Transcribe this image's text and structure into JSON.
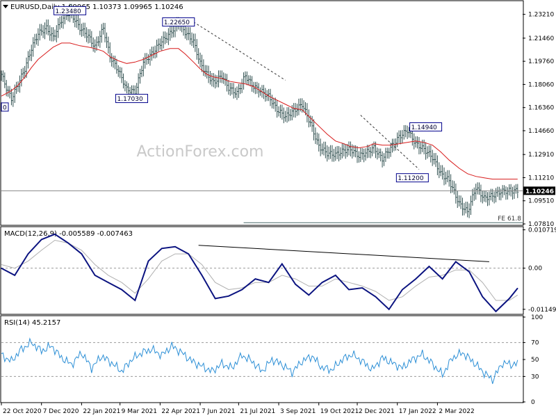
{
  "chart_data": {
    "type": "line",
    "symbol": "EURUSD",
    "timeframe": "Daily",
    "ohlc_header": "1.09965 1.10373 1.09965 1.10246",
    "watermark": "ActionForex.com",
    "price_panel": {
      "ylim": [
        1.0781,
        1.2406
      ],
      "y_ticks": [
        "1.23210",
        "1.21460",
        "1.19760",
        "1.18060",
        "1.16360",
        "1.14660",
        "1.12910",
        "1.11210",
        "1.09510",
        "1.07810"
      ],
      "y_tick_values": [
        1.2321,
        1.2146,
        1.1976,
        1.1806,
        1.1636,
        1.1466,
        1.1291,
        1.1121,
        1.0951,
        1.0781
      ],
      "current_price_label": "1.10246",
      "current_price": 1.10246,
      "x": [
        0,
        3,
        6,
        10,
        14,
        18,
        22,
        27,
        31,
        36,
        41,
        47,
        52,
        56,
        61,
        65,
        70,
        75,
        80,
        85,
        90,
        95,
        101,
        106,
        110,
        115,
        119,
        123,
        127,
        132,
        136,
        141,
        146,
        151,
        155,
        160,
        165,
        170,
        175,
        180,
        185,
        190,
        195,
        200,
        205,
        209,
        214,
        219,
        223,
        228,
        233,
        238,
        243,
        248,
        253,
        258,
        263,
        268,
        274,
        279,
        284,
        289,
        294,
        299,
        304,
        309
      ],
      "close": [
        1.188,
        1.178,
        1.17,
        1.181,
        1.192,
        1.207,
        1.218,
        1.222,
        1.215,
        1.228,
        1.234,
        1.222,
        1.216,
        1.208,
        1.222,
        1.201,
        1.191,
        1.177,
        1.175,
        1.197,
        1.203,
        1.211,
        1.218,
        1.226,
        1.219,
        1.212,
        1.196,
        1.188,
        1.182,
        1.187,
        1.178,
        1.174,
        1.187,
        1.179,
        1.176,
        1.172,
        1.162,
        1.157,
        1.161,
        1.166,
        1.152,
        1.135,
        1.13,
        1.129,
        1.132,
        1.133,
        1.128,
        1.131,
        1.134,
        1.126,
        1.134,
        1.142,
        1.147,
        1.137,
        1.133,
        1.127,
        1.115,
        1.11,
        1.093,
        1.087,
        1.105,
        1.097,
        1.099,
        1.102,
        1.1025,
        1.1025
      ],
      "ma": [
        1.172,
        1.174,
        1.176,
        1.18,
        1.186,
        1.193,
        1.199,
        1.204,
        1.208,
        1.211,
        1.211,
        1.209,
        1.208,
        1.207,
        1.205,
        1.201,
        1.198,
        1.196,
        1.197,
        1.199,
        1.202,
        1.205,
        1.207,
        1.207,
        1.203,
        1.197,
        1.192,
        1.188,
        1.186,
        1.185,
        1.183,
        1.182,
        1.181,
        1.179,
        1.176,
        1.172,
        1.169,
        1.166,
        1.163,
        1.162,
        1.156,
        1.15,
        1.144,
        1.139,
        1.137,
        1.135,
        1.134,
        1.135,
        1.137,
        1.136,
        1.136,
        1.137,
        1.138,
        1.139,
        1.138,
        1.136,
        1.131,
        1.125,
        1.119,
        1.115,
        1.113,
        1.112,
        1.111,
        1.111,
        1.111,
        1.111
      ],
      "annotations": [
        {
          "label": "1.23480",
          "x": 41,
          "y": 1.2348
        },
        {
          "label": "1.22650",
          "x": 106,
          "y": 1.2265
        },
        {
          "label": "1.17030",
          "x": 78,
          "y": 1.1703
        },
        {
          "label": "1.14940",
          "x": 254,
          "y": 1.1494
        },
        {
          "label": "1.11200",
          "x": 246,
          "y": 1.112
        },
        {
          "label": "0",
          "x": 1,
          "y": 1.164
        }
      ],
      "dashed_trendlines": [
        {
          "x": [
            115,
            170
          ],
          "y": [
            1.2265,
            1.1837
          ]
        },
        {
          "x": [
            215,
            250
          ],
          "y": [
            1.158,
            1.1182
          ]
        }
      ],
      "fib_line": {
        "label": "FE 61.8",
        "value": 1.079
      }
    },
    "macd_panel": {
      "title": "MACD(12,26,9) -0.005589 -0.007463",
      "ylim": [
        -0.0125,
        0.0112
      ],
      "y_ticks": [
        "0.010719",
        "0.00",
        "-0.011499"
      ],
      "y_tick_values": [
        0.010719,
        0.0,
        -0.011499
      ],
      "x": [
        0,
        8,
        16,
        24,
        32,
        40,
        48,
        56,
        64,
        72,
        80,
        88,
        96,
        104,
        112,
        120,
        128,
        136,
        144,
        152,
        160,
        168,
        176,
        184,
        192,
        200,
        208,
        216,
        224,
        232,
        240,
        248,
        256,
        264,
        272,
        280,
        288,
        296,
        304,
        309
      ],
      "macd": [
        0.0,
        -0.002,
        0.004,
        0.008,
        0.0095,
        0.007,
        0.004,
        -0.002,
        -0.004,
        -0.006,
        -0.009,
        0.002,
        0.0055,
        0.006,
        0.004,
        -0.002,
        -0.0085,
        -0.0078,
        -0.006,
        -0.003,
        -0.004,
        0.0012,
        -0.0045,
        -0.0075,
        -0.004,
        -0.002,
        -0.006,
        -0.0055,
        -0.008,
        -0.0115,
        -0.006,
        -0.003,
        0.0005,
        -0.003,
        0.0018,
        -0.001,
        -0.008,
        -0.0121,
        -0.0085,
        -0.0056
      ],
      "signal": [
        0.001,
        0.0,
        0.002,
        0.005,
        0.0078,
        0.007,
        0.005,
        0.001,
        -0.002,
        -0.004,
        -0.007,
        -0.003,
        0.002,
        0.004,
        0.004,
        0.001,
        -0.004,
        -0.006,
        -0.0055,
        -0.004,
        -0.004,
        -0.002,
        -0.003,
        -0.005,
        -0.005,
        -0.003,
        -0.004,
        -0.005,
        -0.0065,
        -0.009,
        -0.008,
        -0.005,
        -0.0025,
        -0.002,
        -0.0005,
        -0.0005,
        -0.004,
        -0.009,
        -0.009,
        -0.0075
      ],
      "trendline": {
        "x": [
          118,
          292
        ],
        "y": [
          0.0064,
          0.0018
        ]
      }
    },
    "rsi_panel": {
      "title": "RSI(14) 45.2157",
      "ylim": [
        0,
        100
      ],
      "y_ticks": [
        "100",
        "70",
        "50",
        "30",
        "0"
      ],
      "y_tick_values": [
        100,
        70,
        50,
        30,
        0
      ],
      "guide_levels": [
        70,
        30
      ],
      "x": [
        0,
        6,
        12,
        18,
        24,
        30,
        36,
        42,
        48,
        54,
        60,
        66,
        72,
        78,
        84,
        90,
        96,
        102,
        108,
        114,
        120,
        126,
        132,
        138,
        144,
        150,
        156,
        162,
        168,
        174,
        180,
        186,
        192,
        198,
        204,
        210,
        216,
        222,
        228,
        234,
        240,
        246,
        252,
        258,
        264,
        270,
        276,
        282,
        288,
        294,
        300,
        306,
        309
      ],
      "values": [
        55,
        48,
        62,
        70,
        60,
        66,
        52,
        44,
        58,
        40,
        54,
        46,
        36,
        50,
        58,
        62,
        55,
        66,
        58,
        48,
        42,
        36,
        45,
        40,
        55,
        48,
        36,
        50,
        44,
        35,
        48,
        54,
        40,
        38,
        50,
        56,
        48,
        38,
        52,
        46,
        40,
        50,
        56,
        45,
        32,
        52,
        58,
        48,
        36,
        26,
        46,
        44,
        45.2
      ]
    },
    "x_axis": {
      "labels": [
        "22 Oct 2020",
        "7 Dec 2020",
        "22 Jan 2021",
        "9 Mar 2021",
        "22 Apr 2021",
        "7 Jun 2021",
        "21 Jul 2021",
        "3 Sep 2021",
        "19 Oct 2021",
        "2 Dec 2021",
        "17 Jan 2022",
        "2 Mar 2022"
      ],
      "positions": [
        0,
        24,
        48,
        71,
        95,
        119,
        142,
        166,
        190,
        213,
        237,
        261
      ],
      "range": [
        0,
        312
      ]
    },
    "colors": {
      "price_bars": "#2f4f4f",
      "moving_average": "#d81b1b",
      "macd_line": "#0b1380",
      "macd_signal": "#b0b0b0",
      "rsi_line": "#2c8fd6",
      "trendline": "#000000",
      "annotation_border": "#00008b",
      "current_price_box": "#000000"
    }
  }
}
